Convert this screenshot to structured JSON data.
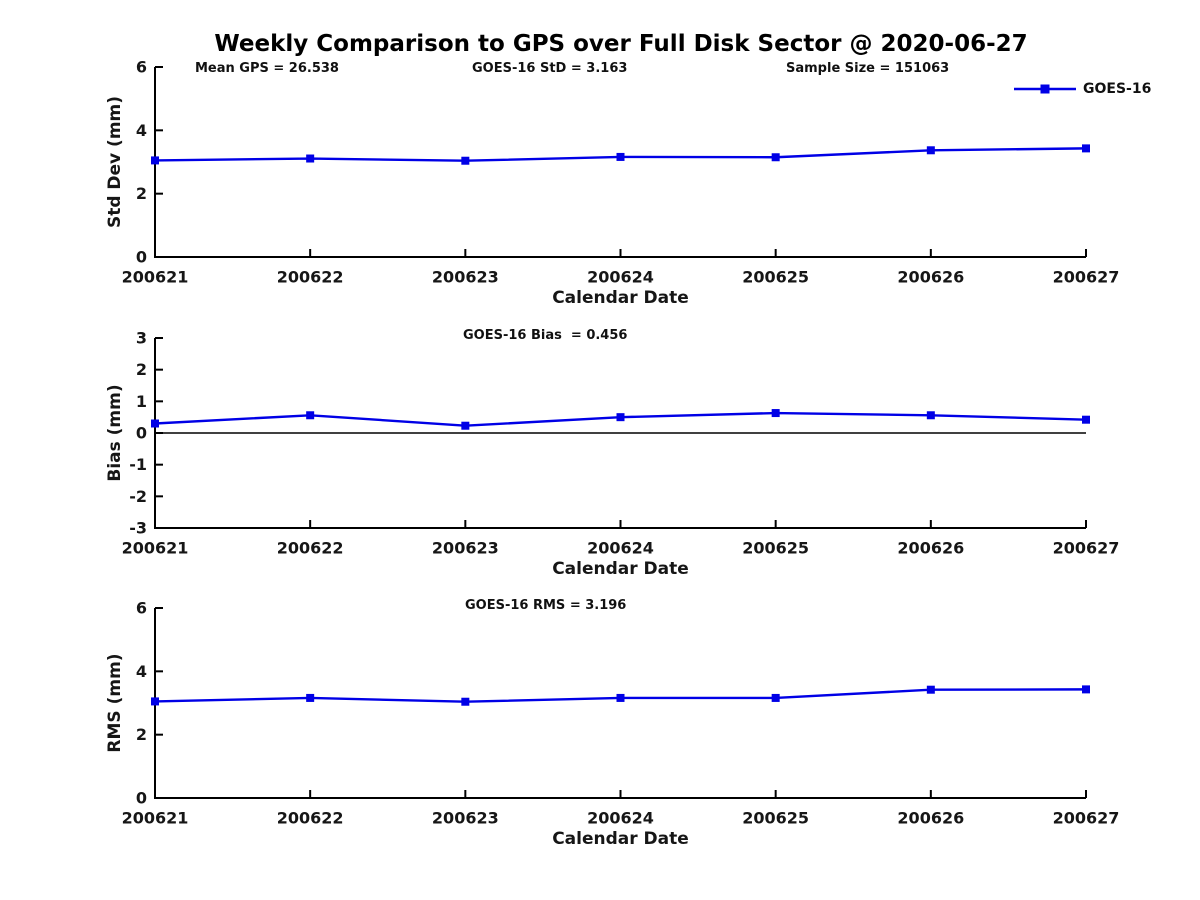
{
  "figure": {
    "title": "Weekly Comparison to GPS over Full Disk Sector @ 2020-06-27"
  },
  "annotations": {
    "mean_gps": "Mean GPS = 26.538",
    "goes16_std": "GOES-16 StD = 3.163",
    "sample_size": "Sample Size = 151063",
    "goes16_bias": "GOES-16 Bias  = 0.456",
    "goes16_rms": "GOES-16 RMS = 3.196"
  },
  "legend": {
    "label": "GOES-16",
    "position": "top-right"
  },
  "colors": {
    "series_blue": "#0000E6",
    "axis_black": "#000000",
    "zero_line_black": "#000000"
  },
  "chart_data": [
    {
      "type": "line",
      "panel": "std-dev",
      "title": "",
      "categories": [
        "200621",
        "200622",
        "200623",
        "200624",
        "200625",
        "200626",
        "200627"
      ],
      "series": [
        {
          "name": "GOES-16",
          "values": [
            3.05,
            3.11,
            3.04,
            3.16,
            3.15,
            3.37,
            3.43
          ]
        }
      ],
      "xlabel": "Calendar Date",
      "ylabel": "Std Dev (mm)",
      "ylim": [
        0,
        6
      ],
      "yticks": [
        0,
        2,
        4,
        6
      ],
      "zero_line": false,
      "grid": false,
      "legend_position": "top-right"
    },
    {
      "type": "line",
      "panel": "bias",
      "title": "",
      "categories": [
        "200621",
        "200622",
        "200623",
        "200624",
        "200625",
        "200626",
        "200627"
      ],
      "series": [
        {
          "name": "GOES-16",
          "values": [
            0.3,
            0.56,
            0.23,
            0.5,
            0.63,
            0.56,
            0.42
          ]
        }
      ],
      "xlabel": "Calendar Date",
      "ylabel": "Bias (mm)",
      "ylim": [
        -3,
        3
      ],
      "yticks": [
        -3,
        -2,
        -1,
        0,
        1,
        2,
        3
      ],
      "zero_line": true,
      "grid": false,
      "legend_position": "none"
    },
    {
      "type": "line",
      "panel": "rms",
      "title": "",
      "categories": [
        "200621",
        "200622",
        "200623",
        "200624",
        "200625",
        "200626",
        "200627"
      ],
      "series": [
        {
          "name": "GOES-16",
          "values": [
            3.05,
            3.16,
            3.04,
            3.16,
            3.16,
            3.42,
            3.43
          ]
        }
      ],
      "xlabel": "Calendar Date",
      "ylabel": "RMS (mm)",
      "ylim": [
        0,
        6
      ],
      "yticks": [
        0,
        2,
        4,
        6
      ],
      "zero_line": false,
      "grid": false,
      "legend_position": "none"
    }
  ]
}
